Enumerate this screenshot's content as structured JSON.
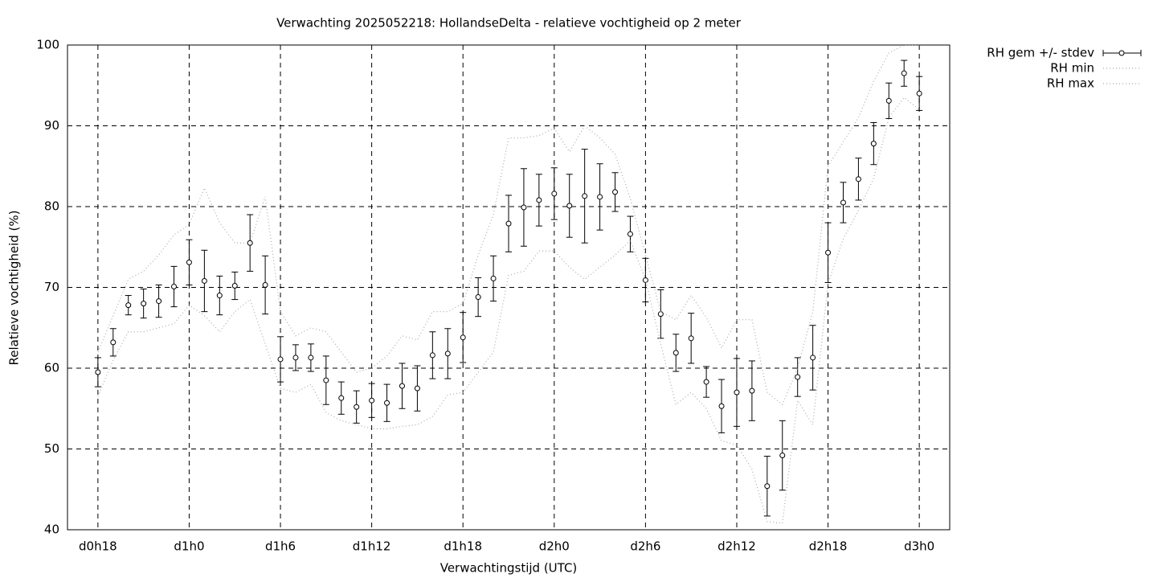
{
  "chart_data": {
    "type": "errorbar",
    "title": "Verwachting 2025052218: HollandseDelta - relatieve vochtigheid op 2 meter",
    "x_label": "Verwachtingstijd (UTC)",
    "y_label": "Relatieve vochtigheid (%)",
    "x": [
      18,
      19,
      20,
      21,
      22,
      23,
      24,
      25,
      26,
      27,
      28,
      29,
      30,
      31,
      32,
      33,
      34,
      35,
      36,
      37,
      38,
      39,
      40,
      41,
      42,
      43,
      44,
      45,
      46,
      47,
      48,
      49,
      50,
      51,
      52,
      53,
      54,
      55,
      56,
      57,
      58,
      59,
      60,
      61,
      62,
      63,
      64,
      65,
      66,
      67,
      68,
      69,
      70,
      71,
      72
    ],
    "series": [
      {
        "name": "RH gem +/- stdev",
        "color": "#000000",
        "values": [
          59.5,
          63.2,
          67.8,
          68.0,
          68.3,
          70.1,
          73.1,
          70.8,
          69.0,
          70.2,
          75.5,
          70.3,
          61.1,
          61.3,
          61.3,
          58.5,
          56.3,
          55.2,
          56.0,
          55.7,
          57.8,
          57.5,
          61.6,
          61.8,
          63.8,
          68.8,
          71.1,
          77.9,
          79.9,
          80.8,
          81.6,
          80.1,
          81.3,
          81.2,
          81.8,
          76.6,
          70.9,
          66.7,
          61.9,
          63.7,
          58.3,
          55.3,
          57.0,
          57.2,
          45.4,
          49.2,
          58.9,
          61.3,
          74.3,
          80.5,
          83.4,
          87.8,
          93.1,
          96.5,
          94.0
        ],
        "errors": [
          1.8,
          1.7,
          1.2,
          1.8,
          2.0,
          2.5,
          2.8,
          3.8,
          2.4,
          1.7,
          3.5,
          3.6,
          2.8,
          1.6,
          1.7,
          3.0,
          2.0,
          2.0,
          2.1,
          2.3,
          2.8,
          2.8,
          2.9,
          3.1,
          3.1,
          2.4,
          2.8,
          3.5,
          4.8,
          3.2,
          3.2,
          3.9,
          5.8,
          4.1,
          2.4,
          2.2,
          2.7,
          3.0,
          2.3,
          3.1,
          1.9,
          3.3,
          4.2,
          3.7,
          3.7,
          4.3,
          2.4,
          4.0,
          3.7,
          2.5,
          2.6,
          2.6,
          2.2,
          1.6,
          2.1
        ]
      },
      {
        "name": "RH min",
        "color": "#aaaaaa",
        "values": [
          56.5,
          61,
          64.5,
          64.5,
          65,
          65.5,
          67.8,
          66.5,
          64.5,
          67,
          68.5,
          63,
          57.5,
          57,
          58,
          54.5,
          53.5,
          53,
          52.5,
          52.5,
          52.8,
          53,
          54,
          56.7,
          57,
          59.5,
          62,
          71.5,
          72,
          74.5,
          74.5,
          72.5,
          71,
          72.5,
          74,
          75.8,
          71,
          63,
          55.5,
          57,
          55,
          51,
          50.5,
          47.5,
          41,
          40.8,
          56,
          53,
          70.5,
          76,
          79.5,
          83.5,
          91,
          93.5,
          92
        ]
      },
      {
        "name": "RH max",
        "color": "#aaaaaa",
        "values": [
          62,
          66.5,
          71,
          72,
          74,
          76.5,
          77.8,
          82.3,
          78,
          75.5,
          75.5,
          81.2,
          67,
          64,
          65,
          64.5,
          62,
          59.5,
          60,
          61.5,
          64,
          63.5,
          67,
          67,
          68,
          74,
          79,
          88.5,
          88.5,
          88.8,
          89.7,
          86.8,
          90,
          88.5,
          86.5,
          81,
          74,
          67,
          66,
          69,
          66.3,
          62.5,
          66,
          66,
          57,
          55.5,
          60,
          67,
          85,
          88,
          91,
          95.5,
          99,
          100,
          100
        ]
      }
    ],
    "xlim": [
      16,
      74
    ],
    "xticks": [
      {
        "value": 18,
        "label": "d0h18"
      },
      {
        "value": 24,
        "label": "d1h0"
      },
      {
        "value": 30,
        "label": "d1h6"
      },
      {
        "value": 36,
        "label": "d1h12"
      },
      {
        "value": 42,
        "label": "d1h18"
      },
      {
        "value": 48,
        "label": "d2h0"
      },
      {
        "value": 54,
        "label": "d2h6"
      },
      {
        "value": 60,
        "label": "d2h12"
      },
      {
        "value": 66,
        "label": "d2h18"
      },
      {
        "value": 72,
        "label": "d3h0"
      }
    ],
    "ylim": [
      40,
      100
    ],
    "yticks": [
      40,
      50,
      60,
      70,
      80,
      90,
      100
    ],
    "grid": true,
    "legend": "outside-top-right"
  }
}
